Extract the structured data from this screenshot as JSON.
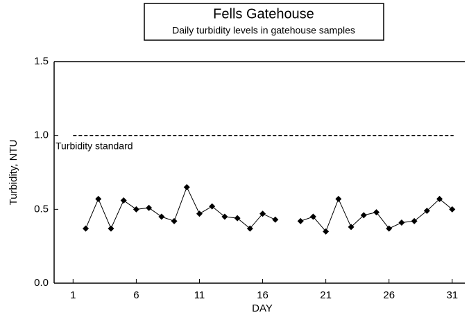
{
  "chart_data": {
    "type": "line",
    "title": "Fells Gatehouse",
    "subtitle": "Daily turbidity levels in gatehouse samples",
    "x_label": "DAY",
    "y_label": "Turbidity, NTU",
    "annotation": "Turbidity standard",
    "standard": 1.0,
    "x": [
      2,
      3,
      4,
      5,
      6,
      7,
      8,
      9,
      10,
      11,
      12,
      13,
      14,
      15,
      16,
      17,
      18,
      19,
      20,
      21,
      22,
      23,
      24,
      25,
      26,
      27,
      28,
      29,
      30,
      31
    ],
    "series": [
      {
        "name": "Turbidity",
        "color": "#000000",
        "values": [
          0.37,
          0.57,
          0.37,
          0.56,
          0.5,
          0.51,
          0.45,
          0.42,
          0.65,
          0.47,
          0.52,
          0.45,
          0.44,
          0.37,
          0.47,
          0.43,
          null,
          0.42,
          0.45,
          0.35,
          0.57,
          0.38,
          0.46,
          0.48,
          0.37,
          0.41,
          0.42,
          0.49,
          0.57,
          0.5
        ]
      }
    ],
    "xlim": [
      -0.5,
      32
    ],
    "xticks": [
      1,
      6,
      11,
      16,
      21,
      26,
      31
    ],
    "ylim": [
      0,
      1.5
    ],
    "yticks": [
      {
        "value": 0,
        "label": "0.0"
      },
      0.5,
      {
        "value": 1.0,
        "label": "1.0"
      },
      {
        "value": 1.5,
        "label": "1.5"
      }
    ]
  }
}
